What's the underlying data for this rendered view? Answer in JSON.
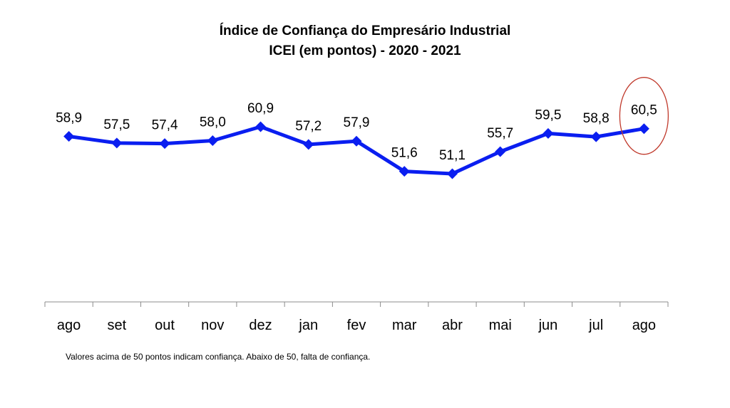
{
  "chart_data": {
    "type": "line",
    "title": "Índice de Confiança do Empresário Industrial",
    "subtitle": "ICEI (em pontos) - 2020 - 2021",
    "categories": [
      "ago",
      "set",
      "out",
      "nov",
      "dez",
      "jan",
      "fev",
      "mar",
      "abr",
      "mai",
      "jun",
      "jul",
      "ago"
    ],
    "values": [
      58.9,
      57.5,
      57.4,
      58.0,
      60.9,
      57.2,
      57.9,
      51.6,
      51.1,
      55.7,
      59.5,
      58.8,
      60.5
    ],
    "value_labels": [
      "58,9",
      "57,5",
      "57,4",
      "58,0",
      "60,9",
      "57,2",
      "57,9",
      "51,6",
      "51,1",
      "55,7",
      "59,5",
      "58,8",
      "60,5"
    ],
    "highlighted_index": 12,
    "line_color": "#0A1EF0",
    "highlight_color": "#C0392B",
    "grid": false,
    "legend": "none"
  },
  "footnote": "Valores acima de 50 pontos indicam confiança. Abaixo de 50, falta de confiança."
}
